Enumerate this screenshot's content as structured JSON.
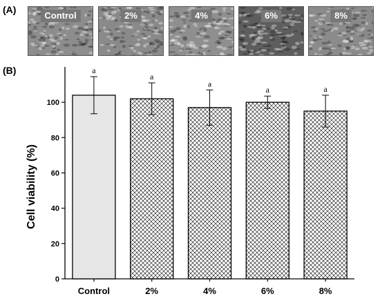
{
  "panel_a": {
    "label": "(A)",
    "images": [
      {
        "label": "Control",
        "tone": "#8d8d8d"
      },
      {
        "label": "2%",
        "tone": "#8a8a8a"
      },
      {
        "label": "4%",
        "tone": "#8f8f8f"
      },
      {
        "label": "6%",
        "tone": "#5e5e5e"
      },
      {
        "label": "8%",
        "tone": "#8b8b8b"
      }
    ]
  },
  "panel_b": {
    "label": "(B)"
  },
  "chart_data": {
    "type": "bar",
    "categories": [
      "Control",
      "2%",
      "4%",
      "6%",
      "8%"
    ],
    "values": [
      104,
      102,
      97,
      100,
      95
    ],
    "errors": [
      10.5,
      9,
      10,
      3.5,
      9
    ],
    "significance": [
      "a",
      "a",
      "a",
      "a",
      "a"
    ],
    "fills": [
      "solid-light-gray",
      "crosshatch",
      "crosshatch",
      "crosshatch",
      "crosshatch"
    ],
    "colors": {
      "control_fill": "#e6e6e6",
      "hatch": "#000000"
    },
    "title": "",
    "xlabel": "",
    "ylabel": "Cell viability (%)",
    "yticks": [
      "0",
      "20",
      "40",
      "60",
      "80",
      "100"
    ],
    "ylim": [
      0,
      120
    ],
    "grid": false
  }
}
